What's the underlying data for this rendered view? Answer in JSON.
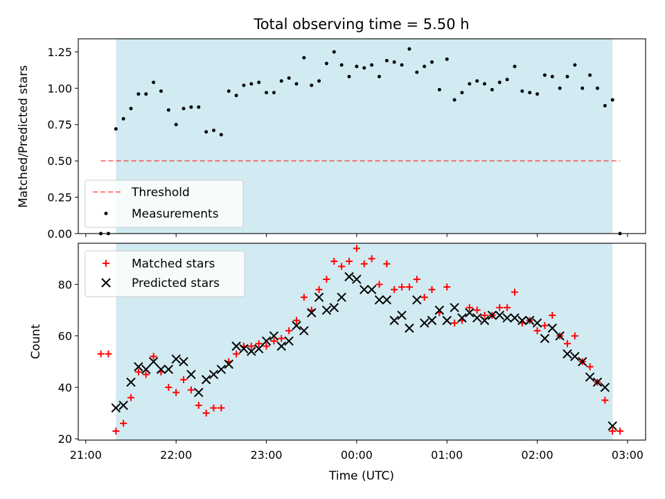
{
  "title": "Total observing time = 5.50 h",
  "xlabel": "Time (UTC)",
  "colors": {
    "shade": "#add8e6",
    "threshold": "#ff0000",
    "measurements": "#000000",
    "matched": "#ff0000",
    "predicted": "#000000"
  },
  "x_ticks": [
    "21:00",
    "22:00",
    "23:00",
    "00:00",
    "01:00",
    "02:00",
    "03:00"
  ],
  "observing_window": [
    "21:20",
    "02:50"
  ],
  "chart_data": [
    {
      "type": "scatter",
      "ylabel": "Matched/Predicted stars",
      "xlim": [
        "20:55",
        "03:12"
      ],
      "ylim": [
        0,
        1.34
      ],
      "y_ticks": [
        "0.00",
        "0.25",
        "0.50",
        "0.75",
        "1.00",
        "1.25"
      ],
      "legend_position": "lower-left",
      "threshold": {
        "name": "Threshold",
        "value": 0.5,
        "x_range": [
          "21:10",
          "02:55"
        ]
      },
      "series": [
        {
          "name": "Measurements",
          "x": [
            "21:10",
            "21:15",
            "21:20",
            "21:25",
            "21:30",
            "21:35",
            "21:40",
            "21:45",
            "21:50",
            "21:55",
            "22:00",
            "22:05",
            "22:10",
            "22:15",
            "22:20",
            "22:25",
            "22:30",
            "22:35",
            "22:40",
            "22:45",
            "22:50",
            "22:55",
            "23:00",
            "23:05",
            "23:10",
            "23:15",
            "23:20",
            "23:25",
            "23:30",
            "23:35",
            "23:40",
            "23:45",
            "23:50",
            "23:55",
            "00:00",
            "00:05",
            "00:10",
            "00:15",
            "00:20",
            "00:25",
            "00:30",
            "00:35",
            "00:40",
            "00:45",
            "00:50",
            "00:55",
            "01:00",
            "01:05",
            "01:10",
            "01:15",
            "01:20",
            "01:25",
            "01:30",
            "01:35",
            "01:40",
            "01:45",
            "01:50",
            "01:55",
            "02:00",
            "02:05",
            "02:10",
            "02:15",
            "02:20",
            "02:25",
            "02:30",
            "02:35",
            "02:40",
            "02:45",
            "02:50",
            "02:55"
          ],
          "y": [
            0.0,
            0.0,
            0.72,
            0.79,
            0.86,
            0.96,
            0.96,
            1.04,
            0.98,
            0.85,
            0.75,
            0.86,
            0.87,
            0.87,
            0.7,
            0.71,
            0.68,
            0.98,
            0.95,
            1.02,
            1.03,
            1.04,
            0.97,
            0.97,
            1.05,
            1.07,
            1.03,
            1.21,
            1.02,
            1.05,
            1.17,
            1.25,
            1.16,
            1.08,
            1.15,
            1.14,
            1.16,
            1.08,
            1.19,
            1.18,
            1.16,
            1.27,
            1.11,
            1.15,
            1.18,
            0.99,
            1.2,
            0.92,
            0.97,
            1.03,
            1.05,
            1.03,
            0.99,
            1.04,
            1.06,
            1.15,
            0.98,
            0.97,
            0.96,
            1.09,
            1.08,
            1.0,
            1.08,
            1.16,
            1.0,
            1.09,
            1.0,
            0.88,
            0.92,
            0.0
          ]
        }
      ]
    },
    {
      "type": "scatter",
      "ylabel": "Count",
      "xlim": [
        "20:55",
        "03:12"
      ],
      "ylim": [
        19.5,
        96
      ],
      "y_ticks": [
        "20",
        "40",
        "60",
        "80"
      ],
      "legend_position": "upper-left",
      "series": [
        {
          "name": "Matched stars",
          "x": [
            "21:10",
            "21:15",
            "21:20",
            "21:25",
            "21:30",
            "21:35",
            "21:40",
            "21:45",
            "21:50",
            "21:55",
            "22:00",
            "22:05",
            "22:10",
            "22:15",
            "22:20",
            "22:25",
            "22:30",
            "22:35",
            "22:40",
            "22:45",
            "22:50",
            "22:55",
            "23:00",
            "23:05",
            "23:10",
            "23:15",
            "23:20",
            "23:25",
            "23:30",
            "23:35",
            "23:40",
            "23:45",
            "23:50",
            "23:55",
            "00:00",
            "00:05",
            "00:10",
            "00:15",
            "00:20",
            "00:25",
            "00:30",
            "00:35",
            "00:40",
            "00:45",
            "00:50",
            "00:55",
            "01:00",
            "01:05",
            "01:10",
            "01:15",
            "01:20",
            "01:25",
            "01:30",
            "01:35",
            "01:40",
            "01:45",
            "01:50",
            "01:55",
            "02:00",
            "02:05",
            "02:10",
            "02:15",
            "02:20",
            "02:25",
            "02:30",
            "02:35",
            "02:40",
            "02:45",
            "02:50",
            "02:55"
          ],
          "y": [
            53,
            53,
            23,
            26,
            36,
            46,
            45,
            52,
            46,
            40,
            38,
            43,
            39,
            33,
            30,
            32,
            32,
            50,
            53,
            56,
            56,
            57,
            56,
            58,
            59,
            62,
            66,
            75,
            70,
            78,
            82,
            89,
            87,
            89,
            94,
            88,
            90,
            80,
            88,
            78,
            79,
            79,
            82,
            75,
            78,
            69,
            79,
            65,
            66,
            71,
            70,
            68,
            68,
            71,
            71,
            77,
            65,
            66,
            62,
            64,
            68,
            60,
            57,
            60,
            50,
            48,
            42,
            35,
            23,
            23
          ]
        },
        {
          "name": "Predicted stars",
          "x": [
            "21:20",
            "21:25",
            "21:30",
            "21:35",
            "21:40",
            "21:45",
            "21:50",
            "21:55",
            "22:00",
            "22:05",
            "22:10",
            "22:15",
            "22:20",
            "22:25",
            "22:30",
            "22:35",
            "22:40",
            "22:45",
            "22:50",
            "22:55",
            "23:00",
            "23:05",
            "23:10",
            "23:15",
            "23:20",
            "23:25",
            "23:30",
            "23:35",
            "23:40",
            "23:45",
            "23:50",
            "23:55",
            "00:00",
            "00:05",
            "00:10",
            "00:15",
            "00:20",
            "00:25",
            "00:30",
            "00:35",
            "00:40",
            "00:45",
            "00:50",
            "00:55",
            "01:00",
            "01:05",
            "01:10",
            "01:15",
            "01:20",
            "01:25",
            "01:30",
            "01:35",
            "01:40",
            "01:45",
            "01:50",
            "01:55",
            "02:00",
            "02:05",
            "02:10",
            "02:15",
            "02:20",
            "02:25",
            "02:30",
            "02:35",
            "02:40",
            "02:45",
            "02:50"
          ],
          "y": [
            32,
            33,
            42,
            48,
            47,
            50,
            47,
            47,
            51,
            50,
            45,
            38,
            43,
            45,
            47,
            49,
            56,
            55,
            54,
            55,
            58,
            60,
            56,
            58,
            64,
            62,
            69,
            75,
            70,
            71,
            75,
            83,
            82,
            78,
            78,
            74,
            74,
            66,
            68,
            63,
            74,
            65,
            66,
            70,
            66,
            71,
            67,
            69,
            67,
            66,
            68,
            68,
            67,
            67,
            66,
            66,
            65,
            59,
            63,
            60,
            53,
            52,
            50,
            44,
            42,
            40,
            25
          ]
        }
      ]
    }
  ]
}
